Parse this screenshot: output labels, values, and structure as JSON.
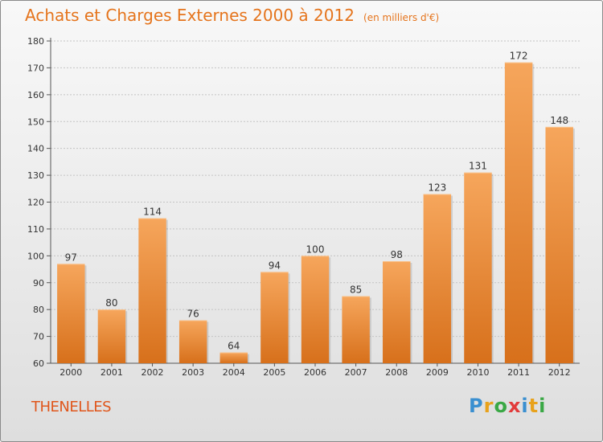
{
  "header": {
    "title": "Achats et Charges Externes 2000 à 2012",
    "unit": "(en milliers d'€)"
  },
  "footer": {
    "commune": "THENELLES",
    "logo": {
      "letters": [
        "P",
        "r",
        "o",
        "x",
        "i",
        "t",
        "i"
      ],
      "colors": [
        "#3a8fd0",
        "#e8a21c",
        "#3aa845",
        "#e23b3b",
        "#3a8fd0",
        "#e8a21c",
        "#3aa845"
      ]
    }
  },
  "colors": {
    "accent": "#e5741c",
    "bar_top": "#f6a65c",
    "bar_bottom": "#d7701b"
  },
  "chart_data": {
    "type": "bar",
    "categories": [
      "2000",
      "2001",
      "2002",
      "2003",
      "2004",
      "2005",
      "2006",
      "2007",
      "2008",
      "2009",
      "2010",
      "2011",
      "2012"
    ],
    "values": [
      97,
      80,
      114,
      76,
      64,
      94,
      100,
      85,
      98,
      123,
      131,
      172,
      148
    ],
    "title": "Achats et Charges Externes 2000 à 2012",
    "ylim": [
      60,
      180
    ],
    "yticks": [
      60,
      70,
      80,
      90,
      100,
      110,
      120,
      130,
      140,
      150,
      160,
      170,
      180
    ],
    "grid": true,
    "legend": "none"
  }
}
